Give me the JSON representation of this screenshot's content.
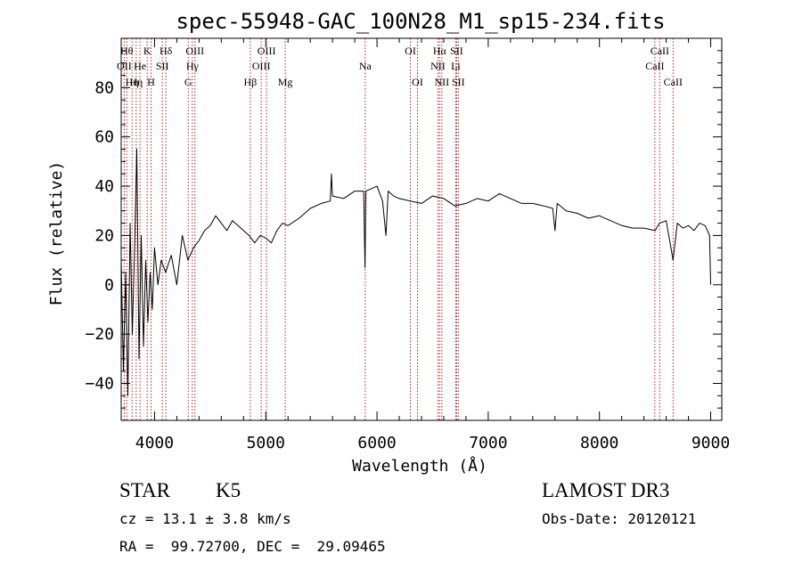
{
  "chart_data": {
    "type": "line",
    "title": "spec-55948-GAC_100N28_M1_sp15-234.fits",
    "xlabel": "Wavelength (Å)",
    "ylabel": "Flux (relative)",
    "xlim": [
      3700,
      9100
    ],
    "ylim": [
      -55,
      100
    ],
    "xticks": [
      4000,
      5000,
      6000,
      7000,
      8000,
      9000
    ],
    "yticks": [
      -40,
      -20,
      0,
      20,
      40,
      60,
      80
    ],
    "grid": false,
    "series": [
      {
        "name": "flux",
        "x": [
          3700,
          3720,
          3740,
          3760,
          3780,
          3800,
          3820,
          3840,
          3860,
          3880,
          3900,
          3920,
          3940,
          3960,
          3980,
          4000,
          4030,
          4060,
          4100,
          4150,
          4200,
          4250,
          4300,
          4350,
          4400,
          4450,
          4500,
          4550,
          4600,
          4650,
          4700,
          4750,
          4800,
          4850,
          4900,
          4950,
          5000,
          5050,
          5100,
          5150,
          5200,
          5300,
          5400,
          5500,
          5580,
          5590,
          5600,
          5700,
          5800,
          5880,
          5892,
          5900,
          6000,
          6050,
          6080,
          6100,
          6150,
          6200,
          6300,
          6400,
          6500,
          6600,
          6700,
          6800,
          6900,
          7000,
          7100,
          7200,
          7300,
          7400,
          7500,
          7580,
          7600,
          7620,
          7700,
          7800,
          7900,
          8000,
          8100,
          8200,
          8300,
          8400,
          8500,
          8540,
          8600,
          8662,
          8700,
          8750,
          8800,
          8850,
          8900,
          8950,
          8990,
          9000
        ],
        "y": [
          10,
          -35,
          5,
          -45,
          25,
          -20,
          15,
          55,
          -30,
          20,
          -25,
          10,
          -15,
          5,
          -10,
          15,
          0,
          10,
          5,
          12,
          0,
          20,
          10,
          15,
          18,
          22,
          24,
          28,
          25,
          22,
          26,
          24,
          22,
          20,
          17,
          20,
          19,
          17,
          22,
          25,
          24,
          27,
          31,
          33,
          34,
          45,
          36,
          35,
          38,
          38,
          7,
          38,
          40,
          34,
          20,
          38,
          36,
          35,
          34,
          33,
          36,
          35,
          32,
          33,
          35,
          34,
          37,
          35,
          33,
          33,
          32,
          31,
          22,
          33,
          30,
          29,
          27,
          28,
          26,
          24,
          23,
          23,
          22,
          25,
          26,
          10,
          25,
          23,
          24,
          22,
          25,
          24,
          20,
          0
        ]
      }
    ],
    "lines": [
      {
        "x": 3727,
        "label": "OII",
        "row": 2
      },
      {
        "x": 3750,
        "label": "Hθ",
        "row": 1
      },
      {
        "x": 3798,
        "label": "Hη",
        "row": 3
      },
      {
        "x": 3835,
        "label": "Hη",
        "row": 3
      },
      {
        "x": 3869,
        "label": "He",
        "row": 2
      },
      {
        "x": 3934,
        "label": "K",
        "row": 1
      },
      {
        "x": 3969,
        "label": "H",
        "row": 3
      },
      {
        "x": 4070,
        "label": "SII",
        "row": 2
      },
      {
        "x": 4102,
        "label": "Hδ",
        "row": 1
      },
      {
        "x": 4303,
        "label": "G",
        "row": 3
      },
      {
        "x": 4340,
        "label": "Hγ",
        "row": 2
      },
      {
        "x": 4363,
        "label": "OIII",
        "row": 1
      },
      {
        "x": 4861,
        "label": "Hβ",
        "row": 3
      },
      {
        "x": 4959,
        "label": "OIII",
        "row": 2
      },
      {
        "x": 5007,
        "label": "OIII",
        "row": 1
      },
      {
        "x": 5175,
        "label": "Mg",
        "row": 3
      },
      {
        "x": 5894,
        "label": "Na",
        "row": 2
      },
      {
        "x": 6300,
        "label": "OI",
        "row": 1
      },
      {
        "x": 6364,
        "label": "OI",
        "row": 3
      },
      {
        "x": 6548,
        "label": "NII",
        "row": 2
      },
      {
        "x": 6563,
        "label": "Hα",
        "row": 1
      },
      {
        "x": 6583,
        "label": "NII",
        "row": 3
      },
      {
        "x": 6708,
        "label": "Li",
        "row": 2
      },
      {
        "x": 6716,
        "label": "SII",
        "row": 1
      },
      {
        "x": 6731,
        "label": "SII",
        "row": 3
      },
      {
        "x": 8498,
        "label": "CaII",
        "row": 2
      },
      {
        "x": 8542,
        "label": "CaII",
        "row": 1
      },
      {
        "x": 8662,
        "label": "CaII",
        "row": 3
      }
    ]
  },
  "info": {
    "object_class": "STAR",
    "subclass": "K5",
    "survey": "LAMOST DR3",
    "redshift": "cz = 13.1 ± 3.8 km/s",
    "obs_date": "Obs-Date: 20120121",
    "coords": "RA =  99.72700, DEC =  29.09465"
  },
  "colors": {
    "line_marker": "#b22222",
    "spectrum": "#000000"
  }
}
